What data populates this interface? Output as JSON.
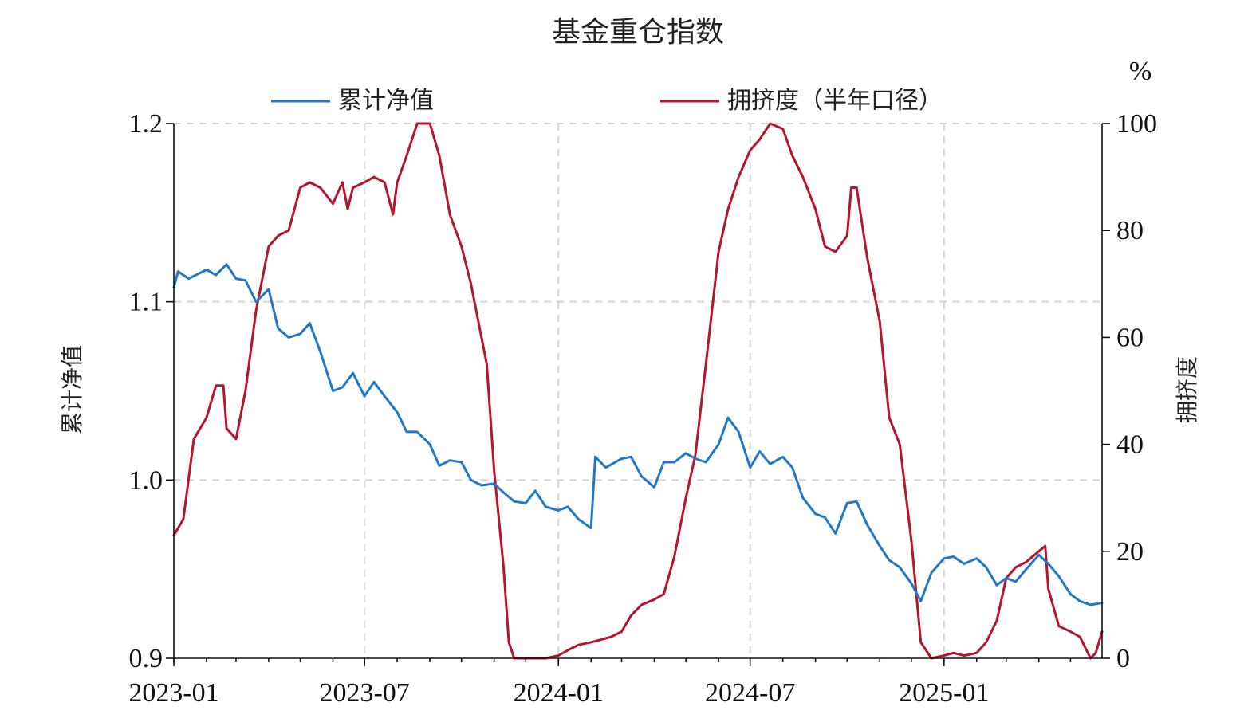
{
  "chart_data": {
    "type": "line",
    "title": "基金重仓指数",
    "ylabel": "累计净值",
    "y2label": "拥挤度",
    "y2unit": "%",
    "ylim": [
      0.9,
      1.2
    ],
    "y2lim": [
      0,
      100
    ],
    "yticks": [
      "0.9",
      "1.0",
      "1.1",
      "1.2"
    ],
    "y2ticks": [
      "0",
      "20",
      "40",
      "60",
      "80",
      "100"
    ],
    "xticks": [
      "2023-01",
      "2023-07",
      "2024-01",
      "2024-07",
      "2025-01"
    ],
    "xlim": [
      "2023-01-01",
      "2025-05-31"
    ],
    "grid": true,
    "legend_position": "top-center",
    "series": [
      {
        "name": "累计净值",
        "axis": "left",
        "color": "#1f78c8",
        "points": [
          [
            "2023-01-01",
            1.108
          ],
          [
            "2023-01-05",
            1.117
          ],
          [
            "2023-01-15",
            1.113
          ],
          [
            "2023-02-01",
            1.118
          ],
          [
            "2023-02-10",
            1.115
          ],
          [
            "2023-02-20",
            1.121
          ],
          [
            "2023-03-01",
            1.113
          ],
          [
            "2023-03-10",
            1.112
          ],
          [
            "2023-03-20",
            1.1
          ],
          [
            "2023-04-01",
            1.107
          ],
          [
            "2023-04-10",
            1.085
          ],
          [
            "2023-04-20",
            1.08
          ],
          [
            "2023-05-01",
            1.082
          ],
          [
            "2023-05-10",
            1.088
          ],
          [
            "2023-05-20",
            1.072
          ],
          [
            "2023-06-01",
            1.05
          ],
          [
            "2023-06-10",
            1.052
          ],
          [
            "2023-06-20",
            1.06
          ],
          [
            "2023-07-01",
            1.047
          ],
          [
            "2023-07-10",
            1.055
          ],
          [
            "2023-07-20",
            1.047
          ],
          [
            "2023-08-01",
            1.038
          ],
          [
            "2023-08-10",
            1.027
          ],
          [
            "2023-08-20",
            1.027
          ],
          [
            "2023-09-01",
            1.02
          ],
          [
            "2023-09-10",
            1.008
          ],
          [
            "2023-09-20",
            1.011
          ],
          [
            "2023-10-01",
            1.01
          ],
          [
            "2023-10-10",
            1.0
          ],
          [
            "2023-10-20",
            0.997
          ],
          [
            "2023-11-01",
            0.998
          ],
          [
            "2023-11-10",
            0.993
          ],
          [
            "2023-11-20",
            0.988
          ],
          [
            "2023-12-01",
            0.987
          ],
          [
            "2023-12-10",
            0.994
          ],
          [
            "2023-12-20",
            0.985
          ],
          [
            "2024-01-01",
            0.983
          ],
          [
            "2024-01-10",
            0.985
          ],
          [
            "2024-01-20",
            0.978
          ],
          [
            "2024-02-01",
            0.973
          ],
          [
            "2024-02-05",
            1.013
          ],
          [
            "2024-02-15",
            1.007
          ],
          [
            "2024-03-01",
            1.012
          ],
          [
            "2024-03-10",
            1.013
          ],
          [
            "2024-03-20",
            1.002
          ],
          [
            "2024-04-01",
            0.996
          ],
          [
            "2024-04-10",
            1.01
          ],
          [
            "2024-04-20",
            1.01
          ],
          [
            "2024-05-01",
            1.015
          ],
          [
            "2024-05-10",
            1.012
          ],
          [
            "2024-05-20",
            1.01
          ],
          [
            "2024-06-01",
            1.02
          ],
          [
            "2024-06-10",
            1.035
          ],
          [
            "2024-06-20",
            1.027
          ],
          [
            "2024-07-01",
            1.007
          ],
          [
            "2024-07-10",
            1.016
          ],
          [
            "2024-07-20",
            1.009
          ],
          [
            "2024-08-01",
            1.013
          ],
          [
            "2024-08-10",
            1.007
          ],
          [
            "2024-08-20",
            0.99
          ],
          [
            "2024-09-01",
            0.981
          ],
          [
            "2024-09-10",
            0.979
          ],
          [
            "2024-09-20",
            0.97
          ],
          [
            "2024-10-01",
            0.987
          ],
          [
            "2024-10-10",
            0.988
          ],
          [
            "2024-10-20",
            0.975
          ],
          [
            "2024-11-01",
            0.963
          ],
          [
            "2024-11-10",
            0.955
          ],
          [
            "2024-11-20",
            0.951
          ],
          [
            "2024-12-01",
            0.942
          ],
          [
            "2024-12-10",
            0.932
          ],
          [
            "2024-12-20",
            0.948
          ],
          [
            "2025-01-01",
            0.956
          ],
          [
            "2025-01-10",
            0.957
          ],
          [
            "2025-01-20",
            0.953
          ],
          [
            "2025-02-01",
            0.956
          ],
          [
            "2025-02-10",
            0.951
          ],
          [
            "2025-02-20",
            0.941
          ],
          [
            "2025-03-01",
            0.945
          ],
          [
            "2025-03-10",
            0.943
          ],
          [
            "2025-03-20",
            0.95
          ],
          [
            "2025-04-01",
            0.958
          ],
          [
            "2025-04-10",
            0.953
          ],
          [
            "2025-04-20",
            0.946
          ],
          [
            "2025-05-01",
            0.936
          ],
          [
            "2025-05-10",
            0.932
          ],
          [
            "2025-05-20",
            0.93
          ],
          [
            "2025-05-31",
            0.931
          ]
        ]
      },
      {
        "name": "拥挤度（半年口径）",
        "axis": "right",
        "color": "#b5152d",
        "points": [
          [
            "2023-01-01",
            23
          ],
          [
            "2023-01-10",
            26
          ],
          [
            "2023-01-20",
            41
          ],
          [
            "2023-02-01",
            45
          ],
          [
            "2023-02-10",
            51
          ],
          [
            "2023-02-17",
            51
          ],
          [
            "2023-02-20",
            43
          ],
          [
            "2023-03-01",
            41
          ],
          [
            "2023-03-10",
            50
          ],
          [
            "2023-03-20",
            65
          ],
          [
            "2023-03-27",
            72
          ],
          [
            "2023-04-01",
            77
          ],
          [
            "2023-04-10",
            79
          ],
          [
            "2023-04-20",
            80
          ],
          [
            "2023-05-01",
            88
          ],
          [
            "2023-05-10",
            89
          ],
          [
            "2023-05-20",
            88
          ],
          [
            "2023-06-01",
            85
          ],
          [
            "2023-06-10",
            89
          ],
          [
            "2023-06-15",
            84
          ],
          [
            "2023-06-20",
            88
          ],
          [
            "2023-07-01",
            89
          ],
          [
            "2023-07-10",
            90
          ],
          [
            "2023-07-20",
            89
          ],
          [
            "2023-07-28",
            83
          ],
          [
            "2023-08-01",
            89
          ],
          [
            "2023-08-10",
            94
          ],
          [
            "2023-08-20",
            100
          ],
          [
            "2023-09-01",
            100
          ],
          [
            "2023-09-10",
            94
          ],
          [
            "2023-09-20",
            83
          ],
          [
            "2023-10-01",
            77
          ],
          [
            "2023-10-10",
            70
          ],
          [
            "2023-10-20",
            60
          ],
          [
            "2023-10-25",
            55
          ],
          [
            "2023-11-01",
            35
          ],
          [
            "2023-11-10",
            17
          ],
          [
            "2023-11-15",
            3
          ],
          [
            "2023-11-20",
            0
          ],
          [
            "2023-12-01",
            0
          ],
          [
            "2023-12-20",
            0
          ],
          [
            "2024-01-01",
            0.5
          ],
          [
            "2024-01-10",
            1.5
          ],
          [
            "2024-01-20",
            2.5
          ],
          [
            "2024-02-01",
            3
          ],
          [
            "2024-02-20",
            4
          ],
          [
            "2024-03-01",
            5
          ],
          [
            "2024-03-10",
            8
          ],
          [
            "2024-03-20",
            10
          ],
          [
            "2024-04-01",
            11
          ],
          [
            "2024-04-10",
            12
          ],
          [
            "2024-04-20",
            19
          ],
          [
            "2024-05-01",
            30
          ],
          [
            "2024-05-10",
            38
          ],
          [
            "2024-05-20",
            55
          ],
          [
            "2024-06-01",
            76
          ],
          [
            "2024-06-10",
            84
          ],
          [
            "2024-06-20",
            90
          ],
          [
            "2024-07-01",
            95
          ],
          [
            "2024-07-10",
            97
          ],
          [
            "2024-07-20",
            100
          ],
          [
            "2024-08-01",
            99
          ],
          [
            "2024-08-10",
            94
          ],
          [
            "2024-08-20",
            90
          ],
          [
            "2024-09-01",
            84
          ],
          [
            "2024-09-10",
            77
          ],
          [
            "2024-09-20",
            76
          ],
          [
            "2024-10-01",
            79
          ],
          [
            "2024-10-05",
            88
          ],
          [
            "2024-10-10",
            88
          ],
          [
            "2024-10-20",
            75
          ],
          [
            "2024-11-01",
            63
          ],
          [
            "2024-11-10",
            45
          ],
          [
            "2024-11-20",
            40
          ],
          [
            "2024-12-01",
            22
          ],
          [
            "2024-12-10",
            3
          ],
          [
            "2024-12-20",
            0
          ],
          [
            "2025-01-01",
            0.5
          ],
          [
            "2025-01-10",
            1
          ],
          [
            "2025-01-20",
            0.5
          ],
          [
            "2025-02-01",
            1
          ],
          [
            "2025-02-10",
            3
          ],
          [
            "2025-02-20",
            7
          ],
          [
            "2025-03-01",
            15
          ],
          [
            "2025-03-10",
            17
          ],
          [
            "2025-03-20",
            18
          ],
          [
            "2025-04-01",
            20
          ],
          [
            "2025-04-07",
            21
          ],
          [
            "2025-04-10",
            13
          ],
          [
            "2025-04-20",
            6
          ],
          [
            "2025-05-01",
            5
          ],
          [
            "2025-05-10",
            4
          ],
          [
            "2025-05-20",
            0
          ],
          [
            "2025-05-25",
            1
          ],
          [
            "2025-05-31",
            5
          ]
        ]
      }
    ]
  }
}
